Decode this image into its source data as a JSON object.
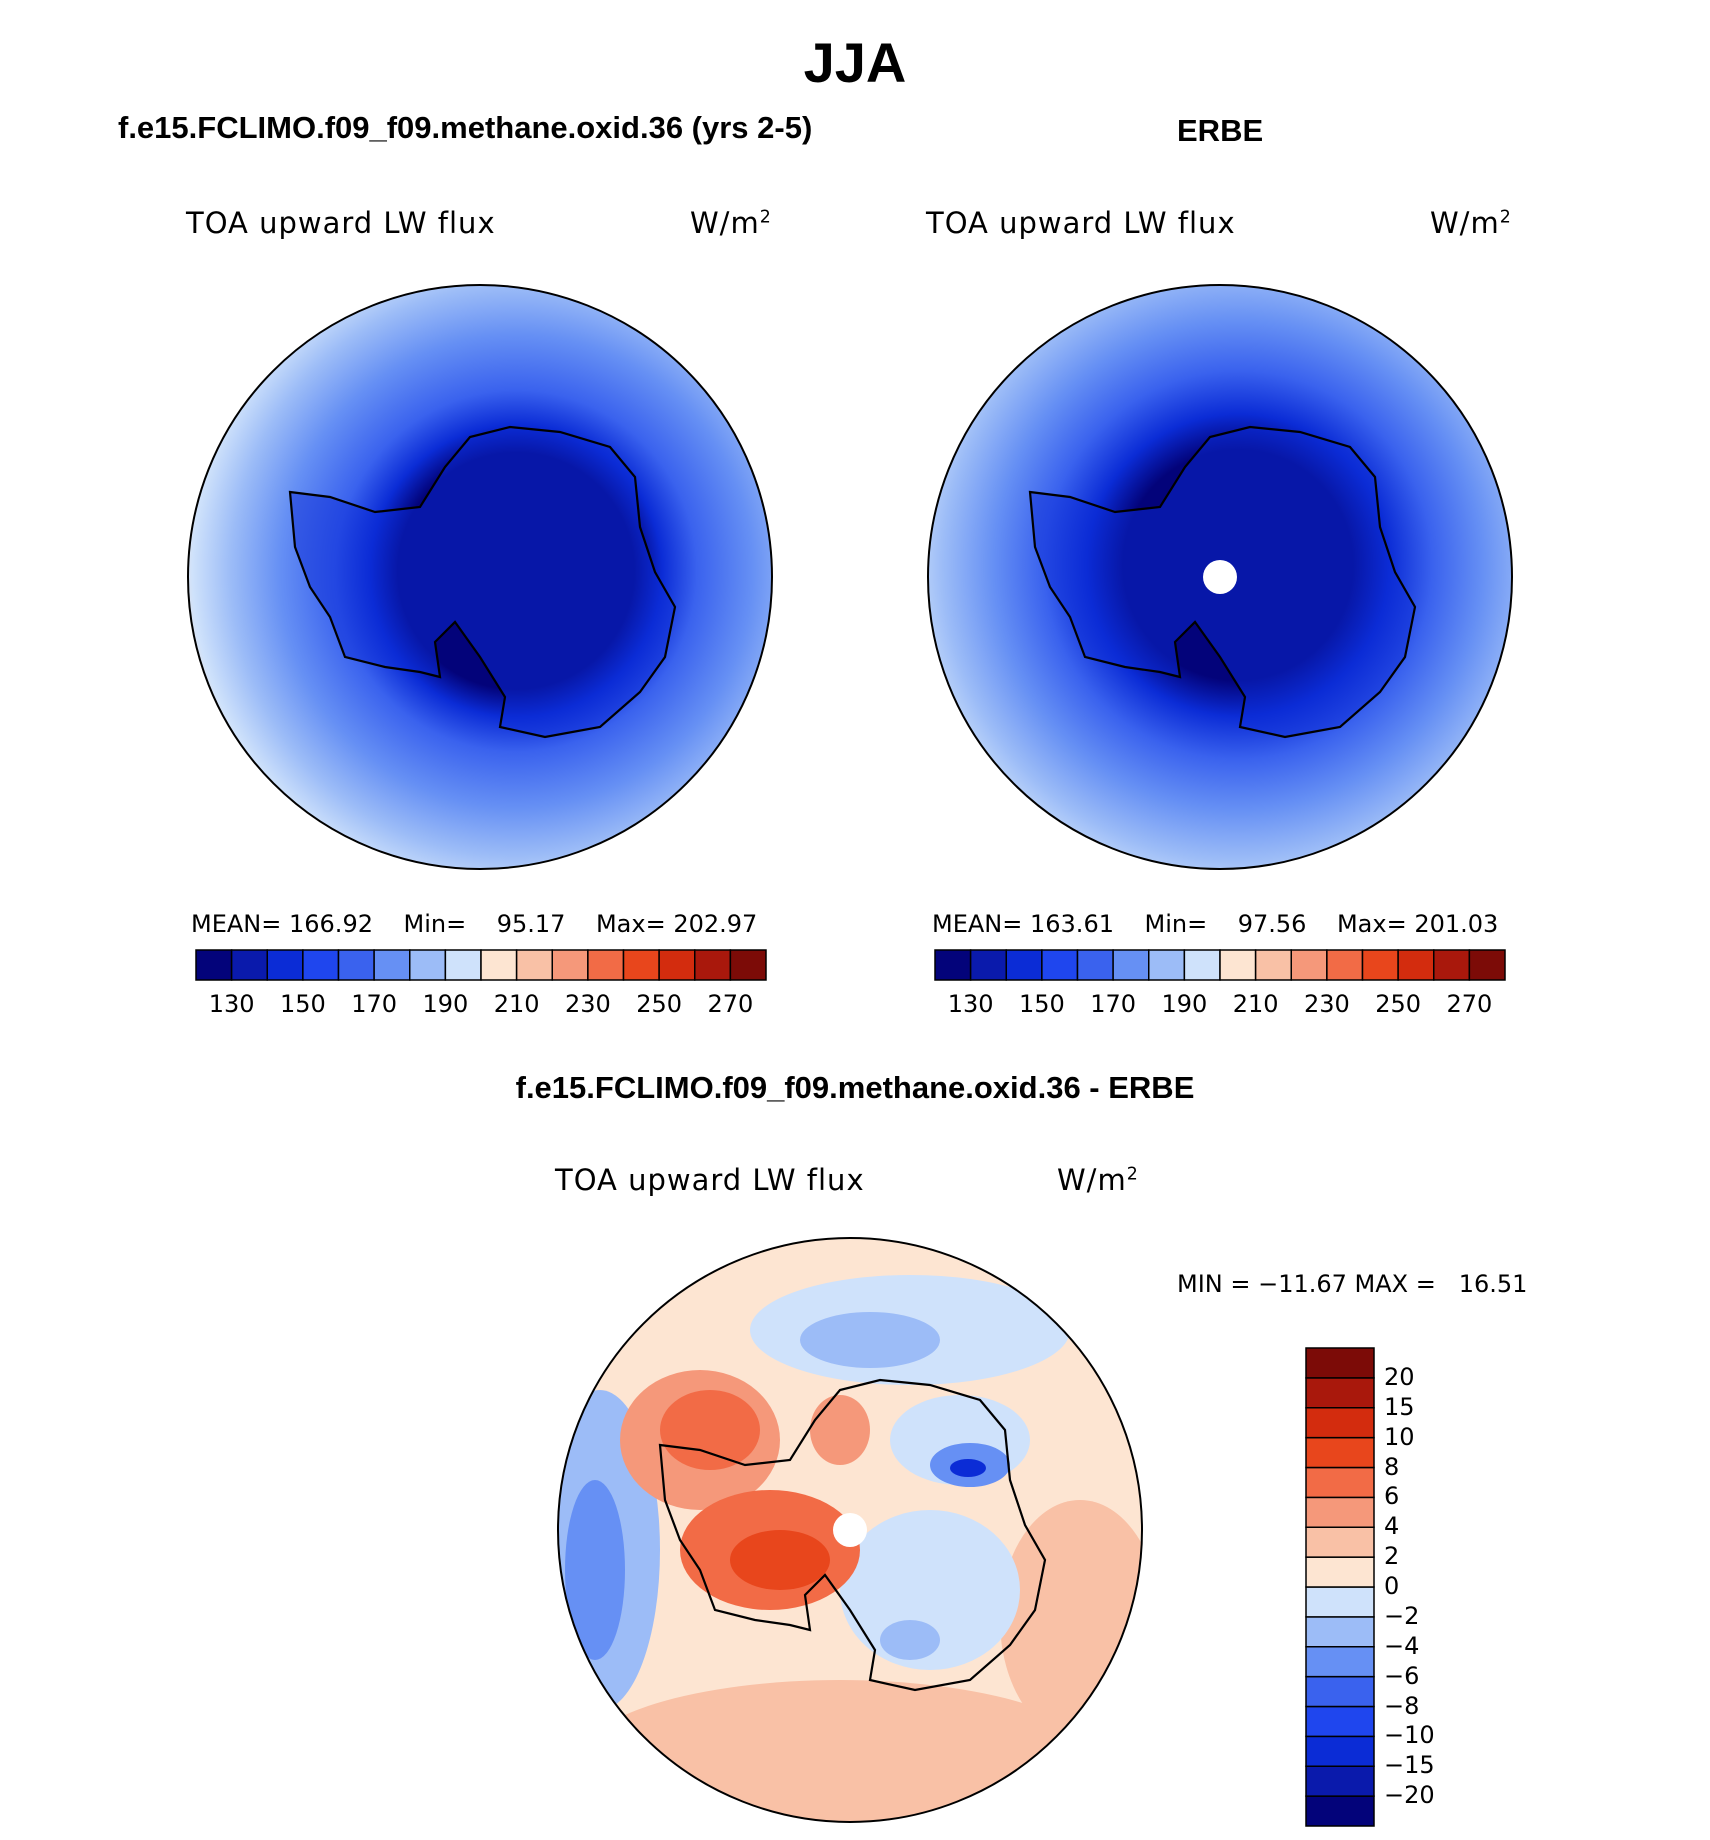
{
  "title": "JJA",
  "panels": {
    "model": {
      "title": "f.e15.FCLIMO.f09_f09.methane.oxid.36 (yrs 2-5)",
      "variable": "TOA upward LW flux",
      "units_base": "W/m",
      "units_exp": "2",
      "stats": {
        "mean_label": "MEAN=",
        "mean": "166.92",
        "min_label": "Min=",
        "min": "95.17",
        "max_label": "Max=",
        "max": "202.97"
      }
    },
    "obs": {
      "title": "ERBE",
      "variable": "TOA upward LW flux",
      "units_base": "W/m",
      "units_exp": "2",
      "stats": {
        "mean_label": "MEAN=",
        "mean": "163.61",
        "min_label": "Min=",
        "min": "97.56",
        "max_label": "Max=",
        "max": "201.03"
      }
    },
    "diff": {
      "title": "f.e15.FCLIMO.f09_f09.methane.oxid.36 - ERBE",
      "variable": "TOA upward LW flux",
      "units_base": "W/m",
      "units_exp": "2",
      "minmax": "MIN = −11.67 MAX =   16.51"
    }
  },
  "chart_data": [
    {
      "type": "heatmap",
      "projection": "south-polar-stereographic",
      "title": "f.e15.FCLIMO.f09_f09.methane.oxid.36 (yrs 2-5)",
      "variable": "TOA upward LW flux",
      "units": "W/m2",
      "mean": 166.92,
      "min": 95.17,
      "max": 202.97,
      "levels": [
        130,
        140,
        150,
        160,
        170,
        180,
        190,
        200,
        210,
        220,
        230,
        240,
        250,
        260,
        270
      ],
      "colorbar_ticks": [
        "130",
        "150",
        "170",
        "190",
        "210",
        "230",
        "250",
        "270"
      ],
      "colors": [
        "#03037a",
        "#0a1aac",
        "#0b2cd6",
        "#1f46ee",
        "#3a62ee",
        "#6690f4",
        "#9cbcf7",
        "#cfe2fb",
        "#fde5d2",
        "#f9c1a6",
        "#f5987a",
        "#f26b46",
        "#e8461c",
        "#d32c0e",
        "#a9180c",
        "#7c0b07"
      ]
    },
    {
      "type": "heatmap",
      "projection": "south-polar-stereographic",
      "title": "ERBE",
      "variable": "TOA upward LW flux",
      "units": "W/m2",
      "mean": 163.61,
      "min": 97.56,
      "max": 201.03,
      "levels": [
        130,
        140,
        150,
        160,
        170,
        180,
        190,
        200,
        210,
        220,
        230,
        240,
        250,
        260,
        270
      ],
      "colorbar_ticks": [
        "130",
        "150",
        "170",
        "190",
        "210",
        "230",
        "250",
        "270"
      ],
      "colors": [
        "#03037a",
        "#0a1aac",
        "#0b2cd6",
        "#1f46ee",
        "#3a62ee",
        "#6690f4",
        "#9cbcf7",
        "#cfe2fb",
        "#fde5d2",
        "#f9c1a6",
        "#f5987a",
        "#f26b46",
        "#e8461c",
        "#d32c0e",
        "#a9180c",
        "#7c0b07"
      ]
    },
    {
      "type": "heatmap",
      "projection": "south-polar-stereographic",
      "title": "f.e15.FCLIMO.f09_f09.methane.oxid.36 - ERBE",
      "variable": "TOA upward LW flux",
      "units": "W/m2",
      "min": -11.67,
      "max": 16.51,
      "levels": [
        -20,
        -15,
        -10,
        -8,
        -6,
        -4,
        -2,
        0,
        2,
        4,
        6,
        8,
        10,
        15,
        20
      ],
      "colorbar_ticks": [
        "20",
        "15",
        "10",
        "8",
        "6",
        "4",
        "2",
        "0",
        "−2",
        "−4",
        "−6",
        "−8",
        "−10",
        "−15",
        "−20"
      ],
      "colors": [
        "#03037a",
        "#0a1aac",
        "#0b2cd6",
        "#1f46ee",
        "#3a62ee",
        "#6690f4",
        "#9cbcf7",
        "#cfe2fb",
        "#fde5d2",
        "#f9c1a6",
        "#f5987a",
        "#f26b46",
        "#e8461c",
        "#d32c0e",
        "#a9180c",
        "#7c0b07"
      ]
    }
  ]
}
